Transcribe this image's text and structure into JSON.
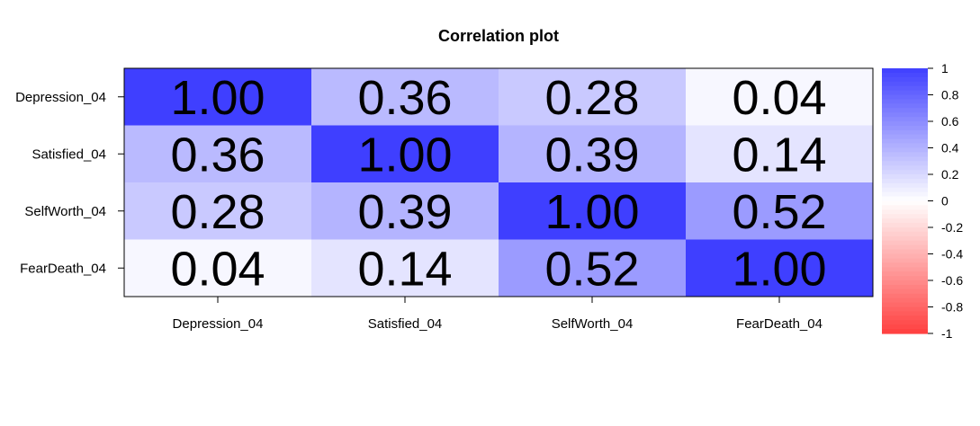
{
  "chart_data": {
    "type": "heatmap",
    "title": "Correlation plot",
    "xlabel": "",
    "ylabel": "",
    "rows": [
      "Depression_04",
      "Satisfied_04",
      "SelfWorth_04",
      "FearDeath_04"
    ],
    "cols": [
      "Depression_04",
      "Satisfied_04",
      "SelfWorth_04",
      "FearDeath_04"
    ],
    "values": [
      [
        1.0,
        0.36,
        0.28,
        0.04
      ],
      [
        0.36,
        1.0,
        0.39,
        0.14
      ],
      [
        0.28,
        0.39,
        1.0,
        0.52
      ],
      [
        0.04,
        0.14,
        0.52,
        1.0
      ]
    ],
    "value_labels": [
      [
        "1.00",
        "0.36",
        "0.28",
        "0.04"
      ],
      [
        "0.36",
        "1.00",
        "0.39",
        "0.14"
      ],
      [
        "0.28",
        "0.39",
        "1.00",
        "0.52"
      ],
      [
        "0.04",
        "0.14",
        "0.52",
        "1.00"
      ]
    ],
    "color_range": [
      -1,
      1
    ],
    "colorbar_ticks": [
      "1",
      "0.8",
      "0.6",
      "0.4",
      "0.2",
      "0",
      "-0.2",
      "-0.4",
      "-0.6",
      "-0.8",
      "-1"
    ],
    "colors": {
      "positive": "#3f3fff",
      "neutral": "#ffffff",
      "negative": "#ff3f3f"
    },
    "legend_position": "right",
    "grid": false
  }
}
